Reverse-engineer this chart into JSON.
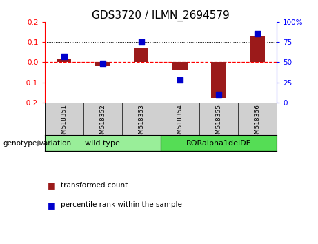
{
  "title": "GDS3720 / ILMN_2694579",
  "samples": [
    "GSM518351",
    "GSM518352",
    "GSM518353",
    "GSM518354",
    "GSM518355",
    "GSM518356"
  ],
  "transformed_count": [
    0.015,
    -0.02,
    0.07,
    -0.04,
    -0.175,
    0.13
  ],
  "percentile_rank": [
    57,
    49,
    75,
    28,
    10,
    85
  ],
  "ylim_left": [
    -0.2,
    0.2
  ],
  "ylim_right": [
    0,
    100
  ],
  "yticks_left": [
    -0.2,
    -0.1,
    0.0,
    0.1,
    0.2
  ],
  "yticks_right": [
    0,
    25,
    50,
    75,
    100
  ],
  "groups": [
    {
      "label": "wild type",
      "indices": [
        0,
        1,
        2
      ],
      "color": "#99EE99"
    },
    {
      "label": "RORalpha1delDE",
      "indices": [
        3,
        4,
        5
      ],
      "color": "#55DD55"
    }
  ],
  "bar_color": "#9B1A1A",
  "dot_color": "#0000CC",
  "legend_bar_label": "transformed count",
  "legend_dot_label": "percentile rank within the sample",
  "genotype_label": "genotype/variation",
  "sample_bg_color": "#D0D0D0",
  "title_fontsize": 11,
  "tick_fontsize": 7.5,
  "sample_fontsize": 6.5,
  "group_fontsize": 8,
  "legend_fontsize": 7.5
}
